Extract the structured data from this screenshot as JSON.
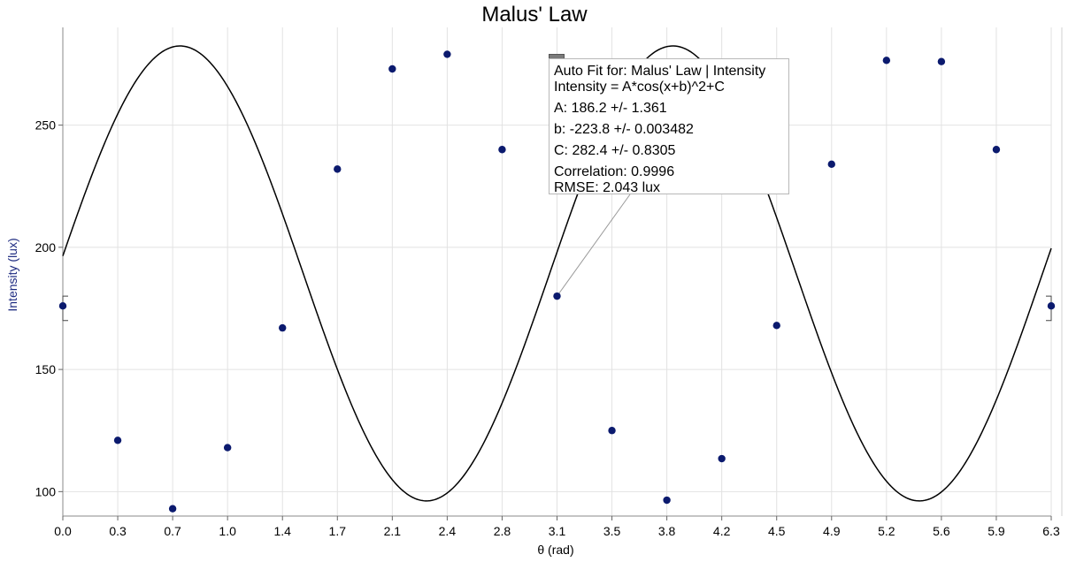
{
  "chart_data": {
    "type": "scatter",
    "title": "Malus' Law",
    "xlabel": "θ (rad)",
    "ylabel": "Intensity (lux)",
    "xlim": [
      0.0,
      6.3
    ],
    "ylim": [
      90,
      290
    ],
    "x_ticks": [
      "0.0",
      "0.3",
      "0.7",
      "1.0",
      "1.4",
      "1.7",
      "2.1",
      "2.4",
      "2.8",
      "3.1",
      "3.5",
      "3.8",
      "4.2",
      "4.5",
      "4.9",
      "5.2",
      "5.6",
      "5.9",
      "6.3"
    ],
    "x_tick_values": [
      0.0,
      0.35,
      0.7,
      1.05,
      1.4,
      1.75,
      2.1,
      2.45,
      2.8,
      3.15,
      3.5,
      3.85,
      4.2,
      4.55,
      4.9,
      5.25,
      5.6,
      5.95,
      6.3
    ],
    "y_ticks": [
      100,
      150,
      200,
      250
    ],
    "grid": true,
    "series": [
      {
        "points": [
          [
            0.0,
            176
          ],
          [
            0.35,
            121
          ],
          [
            0.7,
            93
          ],
          [
            1.05,
            118
          ],
          [
            1.4,
            167
          ],
          [
            1.75,
            232
          ],
          [
            2.1,
            273
          ],
          [
            2.45,
            279
          ],
          [
            2.8,
            240
          ],
          [
            3.15,
            180
          ],
          [
            3.5,
            125
          ],
          [
            3.85,
            96.5
          ],
          [
            4.2,
            113.5
          ],
          [
            4.55,
            168
          ],
          [
            4.9,
            234
          ],
          [
            5.25,
            276.5
          ],
          [
            5.6,
            276
          ],
          [
            5.95,
            240
          ],
          [
            6.3,
            176
          ]
        ],
        "color": "#0b1a6e"
      }
    ],
    "fit": {
      "title": "Auto Fit for: Malus' Law | Intensity",
      "equation": "Intensity = A*cos(x+b)^2+C",
      "A_line": "A: 186.2 +/- 1.361",
      "b_line": "b: -223.8 +/- 0.003482",
      "C_line": "C: 282.4 +/- 0.8305",
      "correlation": "Correlation: 0.9996",
      "rmse": "RMSE: 2.043 lux",
      "A": 186.2,
      "b": -223.8,
      "C": 282.4,
      "color": "#000000"
    }
  }
}
